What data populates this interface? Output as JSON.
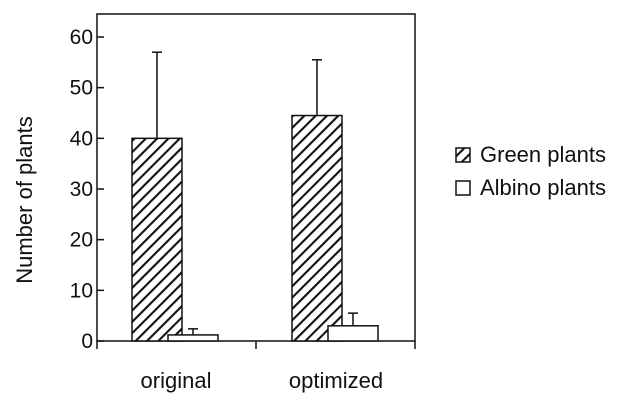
{
  "chart_data": {
    "type": "bar",
    "title": "",
    "xlabel": "",
    "ylabel": "Number of plants",
    "ylim": [
      0,
      65
    ],
    "yticks": [
      0,
      10,
      20,
      30,
      40,
      50,
      60
    ],
    "categories": [
      "original",
      "optimized"
    ],
    "series": [
      {
        "name": "Green plants",
        "pattern": "hatched",
        "values": [
          40,
          44.5
        ],
        "errors": [
          17,
          11
        ]
      },
      {
        "name": "Albino plants",
        "pattern": "plain",
        "values": [
          1.2,
          3
        ],
        "errors": [
          1.2,
          2.5
        ]
      }
    ],
    "legend_position": "right",
    "grid": false,
    "colors": {
      "axis": "#111111",
      "bar_fill": "#ffffff",
      "hatch": "#111111"
    }
  }
}
